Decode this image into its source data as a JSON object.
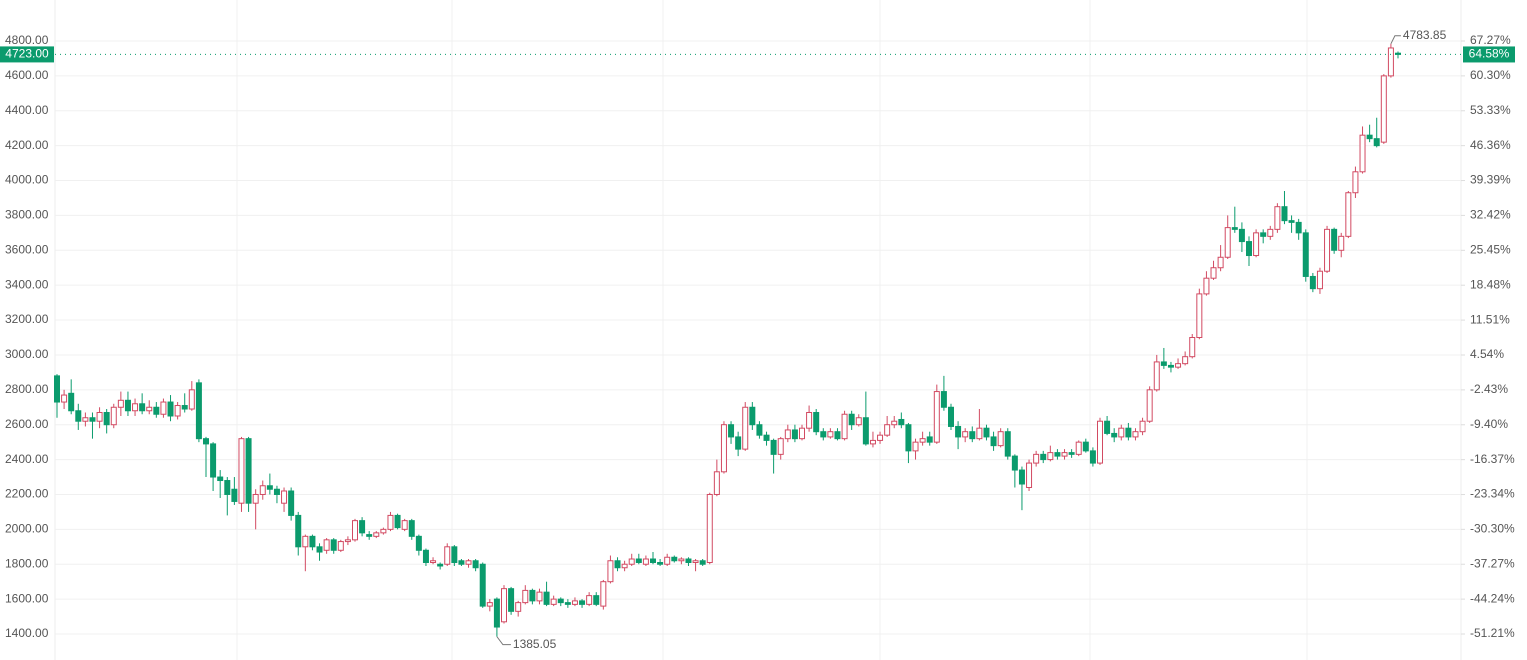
{
  "chart_data": {
    "type": "candlestick",
    "up_color": "#d24a62",
    "down_color": "#0b9b6d",
    "grid": true,
    "ylim": [
      1251,
      5035
    ],
    "yticks": [
      {
        "value": 1400,
        "label": "1400.00"
      },
      {
        "value": 1600,
        "label": "1600.00"
      },
      {
        "value": 1800,
        "label": "1800.00"
      },
      {
        "value": 2000,
        "label": "2000.00"
      },
      {
        "value": 2200,
        "label": "2200.00"
      },
      {
        "value": 2400,
        "label": "2400.00"
      },
      {
        "value": 2600,
        "label": "2600.00"
      },
      {
        "value": 2800,
        "label": "2800.00"
      },
      {
        "value": 3000,
        "label": "3000.00"
      },
      {
        "value": 3200,
        "label": "3200.00"
      },
      {
        "value": 3400,
        "label": "3400.00"
      },
      {
        "value": 3600,
        "label": "3600.00"
      },
      {
        "value": 3800,
        "label": "3800.00"
      },
      {
        "value": 4000,
        "label": "4000.00"
      },
      {
        "value": 4200,
        "label": "4200.00"
      },
      {
        "value": 4400,
        "label": "4400.00"
      },
      {
        "value": 4600,
        "label": "4600.00"
      },
      {
        "value": 4800,
        "label": "4800.00"
      }
    ],
    "y2lim": [
      -56.4,
      75.46
    ],
    "y2ticks": [
      {
        "value": 67.27,
        "label": "67.27%"
      },
      {
        "value": 60.3,
        "label": "60.30%"
      },
      {
        "value": 53.33,
        "label": "53.33%"
      },
      {
        "value": 46.36,
        "label": "46.36%"
      },
      {
        "value": 39.39,
        "label": "39.39%"
      },
      {
        "value": 32.42,
        "label": "32.42%"
      },
      {
        "value": 25.45,
        "label": "25.45%"
      },
      {
        "value": 18.48,
        "label": "18.48%"
      },
      {
        "value": 11.51,
        "label": "11.51%"
      },
      {
        "value": 4.54,
        "label": "4.54%"
      },
      {
        "value": -2.43,
        "label": "-2.43%"
      },
      {
        "value": -9.4,
        "label": "-9.40%"
      },
      {
        "value": -16.37,
        "label": "-16.37%"
      },
      {
        "value": -23.34,
        "label": "-23.34%"
      },
      {
        "value": -30.3,
        "label": "-30.30%"
      },
      {
        "value": -37.27,
        "label": "-37.27%"
      },
      {
        "value": -44.24,
        "label": "-44.24%"
      },
      {
        "value": -51.21,
        "label": "-51.21%"
      }
    ],
    "price_line": {
      "value": 4723,
      "label": "4723.00",
      "y2_value": 64.58,
      "y2_label": "64.58%"
    },
    "ohlc": [
      [
        2880,
        2890,
        2640,
        2730
      ],
      [
        2730,
        2800,
        2690,
        2770
      ],
      [
        2780,
        2860,
        2660,
        2680
      ],
      [
        2680,
        2720,
        2570,
        2620
      ],
      [
        2620,
        2670,
        2590,
        2640
      ],
      [
        2640,
        2670,
        2520,
        2620
      ],
      [
        2620,
        2700,
        2580,
        2670
      ],
      [
        2670,
        2690,
        2550,
        2600
      ],
      [
        2600,
        2720,
        2580,
        2700
      ],
      [
        2700,
        2790,
        2650,
        2740
      ],
      [
        2740,
        2790,
        2650,
        2680
      ],
      [
        2680,
        2750,
        2650,
        2720
      ],
      [
        2720,
        2780,
        2660,
        2680
      ],
      [
        2680,
        2740,
        2660,
        2700
      ],
      [
        2700,
        2730,
        2640,
        2660
      ],
      [
        2660,
        2750,
        2640,
        2730
      ],
      [
        2730,
        2770,
        2620,
        2650
      ],
      [
        2650,
        2730,
        2630,
        2710
      ],
      [
        2710,
        2780,
        2670,
        2690
      ],
      [
        2690,
        2850,
        2680,
        2800
      ],
      [
        2840,
        2860,
        2500,
        2520
      ],
      [
        2520,
        2530,
        2300,
        2490
      ],
      [
        2490,
        2500,
        2220,
        2300
      ],
      [
        2300,
        2340,
        2180,
        2280
      ],
      [
        2280,
        2300,
        2080,
        2200
      ],
      [
        2230,
        2300,
        2140,
        2160
      ],
      [
        2150,
        2530,
        2100,
        2520
      ],
      [
        2520,
        2530,
        2100,
        2150
      ],
      [
        2150,
        2230,
        2000,
        2200
      ],
      [
        2200,
        2280,
        2170,
        2250
      ],
      [
        2250,
        2320,
        2200,
        2230
      ],
      [
        2230,
        2250,
        2150,
        2200
      ],
      [
        2150,
        2240,
        2100,
        2220
      ],
      [
        2220,
        2240,
        2050,
        2080
      ],
      [
        2080,
        2100,
        1850,
        1900
      ],
      [
        1900,
        1970,
        1760,
        1960
      ],
      [
        1960,
        1970,
        1880,
        1900
      ],
      [
        1900,
        1920,
        1820,
        1870
      ],
      [
        1880,
        1950,
        1860,
        1940
      ],
      [
        1940,
        1950,
        1860,
        1880
      ],
      [
        1880,
        1940,
        1870,
        1930
      ],
      [
        1930,
        1960,
        1910,
        1940
      ],
      [
        1940,
        2060,
        1930,
        2050
      ],
      [
        2050,
        2070,
        1960,
        1980
      ],
      [
        1970,
        1990,
        1940,
        1960
      ],
      [
        1960,
        1990,
        1950,
        1980
      ],
      [
        1980,
        2010,
        1970,
        2000
      ],
      [
        2000,
        2100,
        1990,
        2080
      ],
      [
        2080,
        2090,
        2000,
        2010
      ],
      [
        2000,
        2060,
        1990,
        2050
      ],
      [
        2050,
        2060,
        1940,
        1960
      ],
      [
        1960,
        1970,
        1850,
        1880
      ],
      [
        1880,
        1890,
        1790,
        1810
      ],
      [
        1810,
        1840,
        1800,
        1820
      ],
      [
        1800,
        1810,
        1770,
        1790
      ],
      [
        1800,
        1920,
        1790,
        1900
      ],
      [
        1900,
        1910,
        1790,
        1810
      ],
      [
        1820,
        1830,
        1790,
        1800
      ],
      [
        1800,
        1830,
        1780,
        1820
      ],
      [
        1820,
        1830,
        1760,
        1780
      ],
      [
        1800,
        1810,
        1550,
        1560
      ],
      [
        1560,
        1600,
        1530,
        1580
      ],
      [
        1600,
        1610,
        1385.05,
        1440
      ],
      [
        1470,
        1680,
        1460,
        1660
      ],
      [
        1660,
        1670,
        1510,
        1530
      ],
      [
        1530,
        1590,
        1500,
        1580
      ],
      [
        1580,
        1680,
        1570,
        1650
      ],
      [
        1650,
        1660,
        1570,
        1590
      ],
      [
        1590,
        1660,
        1570,
        1640
      ],
      [
        1640,
        1700,
        1560,
        1570
      ],
      [
        1570,
        1620,
        1560,
        1600
      ],
      [
        1600,
        1610,
        1560,
        1580
      ],
      [
        1580,
        1600,
        1550,
        1570
      ],
      [
        1570,
        1610,
        1560,
        1590
      ],
      [
        1590,
        1600,
        1550,
        1570
      ],
      [
        1570,
        1640,
        1560,
        1620
      ],
      [
        1620,
        1640,
        1560,
        1570
      ],
      [
        1560,
        1710,
        1540,
        1700
      ],
      [
        1700,
        1850,
        1690,
        1820
      ],
      [
        1820,
        1840,
        1760,
        1780
      ],
      [
        1780,
        1820,
        1760,
        1800
      ],
      [
        1800,
        1860,
        1790,
        1830
      ],
      [
        1830,
        1860,
        1800,
        1810
      ],
      [
        1800,
        1850,
        1790,
        1830
      ],
      [
        1830,
        1870,
        1800,
        1810
      ],
      [
        1810,
        1830,
        1790,
        1800
      ],
      [
        1800,
        1860,
        1790,
        1840
      ],
      [
        1840,
        1850,
        1810,
        1820
      ],
      [
        1820,
        1840,
        1800,
        1830
      ],
      [
        1830,
        1840,
        1790,
        1810
      ],
      [
        1810,
        1830,
        1760,
        1820
      ],
      [
        1820,
        1830,
        1790,
        1800
      ],
      [
        1810,
        2210,
        1800,
        2200
      ],
      [
        2200,
        2400,
        2190,
        2330
      ],
      [
        2330,
        2620,
        2320,
        2600
      ],
      [
        2600,
        2620,
        2490,
        2530
      ],
      [
        2530,
        2560,
        2420,
        2460
      ],
      [
        2460,
        2730,
        2450,
        2700
      ],
      [
        2700,
        2730,
        2570,
        2600
      ],
      [
        2600,
        2620,
        2520,
        2540
      ],
      [
        2540,
        2560,
        2480,
        2510
      ],
      [
        2510,
        2520,
        2320,
        2430
      ],
      [
        2430,
        2530,
        2400,
        2520
      ],
      [
        2520,
        2600,
        2500,
        2570
      ],
      [
        2570,
        2600,
        2500,
        2520
      ],
      [
        2520,
        2600,
        2510,
        2580
      ],
      [
        2580,
        2710,
        2560,
        2670
      ],
      [
        2670,
        2690,
        2540,
        2560
      ],
      [
        2560,
        2580,
        2510,
        2530
      ],
      [
        2530,
        2580,
        2520,
        2560
      ],
      [
        2560,
        2580,
        2510,
        2520
      ],
      [
        2520,
        2680,
        2510,
        2660
      ],
      [
        2660,
        2680,
        2570,
        2600
      ],
      [
        2600,
        2660,
        2590,
        2640
      ],
      [
        2640,
        2790,
        2480,
        2490
      ],
      [
        2490,
        2560,
        2470,
        2510
      ],
      [
        2510,
        2560,
        2490,
        2540
      ],
      [
        2540,
        2650,
        2530,
        2600
      ],
      [
        2600,
        2650,
        2580,
        2620
      ],
      [
        2630,
        2670,
        2580,
        2600
      ],
      [
        2600,
        2610,
        2380,
        2450
      ],
      [
        2450,
        2520,
        2400,
        2500
      ],
      [
        2500,
        2560,
        2480,
        2520
      ],
      [
        2530,
        2560,
        2480,
        2500
      ],
      [
        2500,
        2830,
        2490,
        2790
      ],
      [
        2790,
        2880,
        2680,
        2700
      ],
      [
        2700,
        2720,
        2570,
        2590
      ],
      [
        2590,
        2620,
        2460,
        2530
      ],
      [
        2530,
        2580,
        2500,
        2560
      ],
      [
        2560,
        2590,
        2500,
        2520
      ],
      [
        2520,
        2690,
        2510,
        2580
      ],
      [
        2580,
        2600,
        2510,
        2530
      ],
      [
        2530,
        2560,
        2450,
        2480
      ],
      [
        2480,
        2580,
        2470,
        2560
      ],
      [
        2560,
        2580,
        2400,
        2420
      ],
      [
        2420,
        2430,
        2240,
        2340
      ],
      [
        2340,
        2360,
        2110,
        2260
      ],
      [
        2240,
        2400,
        2220,
        2380
      ],
      [
        2380,
        2450,
        2360,
        2430
      ],
      [
        2430,
        2450,
        2380,
        2400
      ],
      [
        2400,
        2480,
        2390,
        2440
      ],
      [
        2440,
        2460,
        2400,
        2420
      ],
      [
        2420,
        2460,
        2400,
        2440
      ],
      [
        2440,
        2460,
        2410,
        2430
      ],
      [
        2430,
        2510,
        2420,
        2500
      ],
      [
        2500,
        2520,
        2440,
        2450
      ],
      [
        2450,
        2470,
        2360,
        2380
      ],
      [
        2380,
        2640,
        2370,
        2620
      ],
      [
        2620,
        2650,
        2540,
        2550
      ],
      [
        2550,
        2580,
        2500,
        2530
      ],
      [
        2530,
        2600,
        2510,
        2580
      ],
      [
        2580,
        2610,
        2510,
        2530
      ],
      [
        2530,
        2580,
        2510,
        2560
      ],
      [
        2560,
        2640,
        2540,
        2620
      ],
      [
        2620,
        2820,
        2610,
        2800
      ],
      [
        2800,
        3000,
        2790,
        2960
      ],
      [
        2960,
        3040,
        2920,
        2940
      ],
      [
        2940,
        2960,
        2900,
        2930
      ],
      [
        2930,
        2980,
        2920,
        2950
      ],
      [
        2950,
        3020,
        2940,
        2990
      ],
      [
        2990,
        3120,
        2980,
        3100
      ],
      [
        3100,
        3380,
        3090,
        3350
      ],
      [
        3350,
        3480,
        3340,
        3440
      ],
      [
        3440,
        3540,
        3430,
        3500
      ],
      [
        3500,
        3630,
        3480,
        3560
      ],
      [
        3560,
        3800,
        3550,
        3730
      ],
      [
        3730,
        3850,
        3700,
        3720
      ],
      [
        3720,
        3760,
        3590,
        3650
      ],
      [
        3650,
        3680,
        3510,
        3570
      ],
      [
        3570,
        3720,
        3560,
        3700
      ],
      [
        3700,
        3720,
        3640,
        3680
      ],
      [
        3680,
        3740,
        3660,
        3720
      ],
      [
        3720,
        3870,
        3700,
        3850
      ],
      [
        3850,
        3940,
        3750,
        3770
      ],
      [
        3770,
        3800,
        3700,
        3760
      ],
      [
        3760,
        3780,
        3660,
        3700
      ],
      [
        3700,
        3720,
        3420,
        3450
      ],
      [
        3450,
        3470,
        3360,
        3380
      ],
      [
        3380,
        3500,
        3350,
        3480
      ],
      [
        3480,
        3740,
        3470,
        3720
      ],
      [
        3720,
        3730,
        3580,
        3600
      ],
      [
        3600,
        3700,
        3560,
        3680
      ],
      [
        3680,
        3940,
        3670,
        3930
      ],
      [
        3930,
        4080,
        3900,
        4050
      ],
      [
        4050,
        4310,
        4040,
        4260
      ],
      [
        4260,
        4320,
        4220,
        4240
      ],
      [
        4240,
        4360,
        4190,
        4200
      ],
      [
        4220,
        4610,
        4210,
        4600
      ],
      [
        4600,
        4783.85,
        4590,
        4760
      ],
      [
        4730,
        4740,
        4700,
        4723
      ]
    ]
  }
}
